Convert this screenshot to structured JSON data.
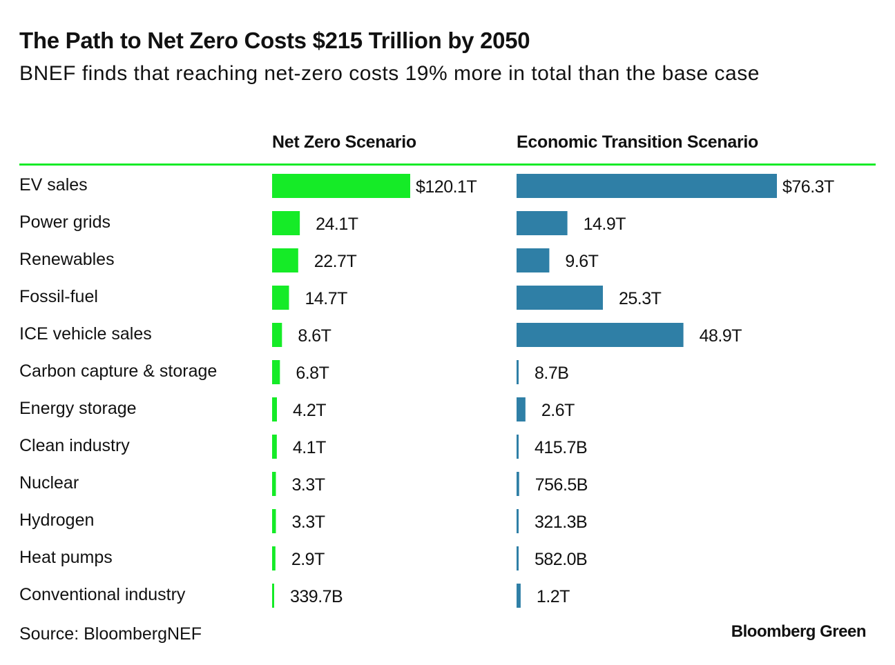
{
  "title": "The Path to Net Zero Costs $215 Trillion by 2050",
  "subtitle": "BNEF finds that reaching net-zero costs 19% more in total than the base case",
  "source": "Source: BloombergNEF",
  "brand": "Bloomberg Green",
  "colors": {
    "net_zero": "#15eb27",
    "economic_transition": "#2f7fa6",
    "rule": "#15eb27"
  },
  "chart_data": {
    "type": "bar",
    "orientation": "horizontal",
    "unit": "USD",
    "categories": [
      "EV sales",
      "Power grids",
      "Renewables",
      "Fossil-fuel",
      "ICE vehicle sales",
      "Carbon capture & storage",
      "Energy storage",
      "Clean industry",
      "Nuclear",
      "Hydrogen",
      "Heat pumps",
      "Conventional industry"
    ],
    "series": [
      {
        "name": "Net Zero Scenario",
        "values": [
          120.1,
          24.1,
          22.7,
          14.7,
          8.6,
          6.8,
          4.2,
          4.1,
          3.3,
          3.3,
          2.9,
          0.3397
        ],
        "labels": [
          "$120.1T",
          "24.1T",
          "22.7T",
          "14.7T",
          "8.6T",
          "6.8T",
          "4.2T",
          "4.1T",
          "3.3T",
          "3.3T",
          "2.9T",
          "339.7B"
        ]
      },
      {
        "name": "Economic Transition Scenario",
        "values": [
          76.3,
          14.9,
          9.6,
          25.3,
          48.9,
          0.0087,
          2.6,
          0.4157,
          0.7565,
          0.3213,
          0.582,
          1.2
        ],
        "labels": [
          "$76.3T",
          "14.9T",
          "9.6T",
          "25.3T",
          "48.9T",
          "8.7B",
          "2.6T",
          "415.7B",
          "756.5B",
          "321.3B",
          "582.0B",
          "1.2T"
        ]
      }
    ],
    "xlim": [
      0,
      120.1
    ],
    "value_unit": "trillions of US dollars"
  }
}
